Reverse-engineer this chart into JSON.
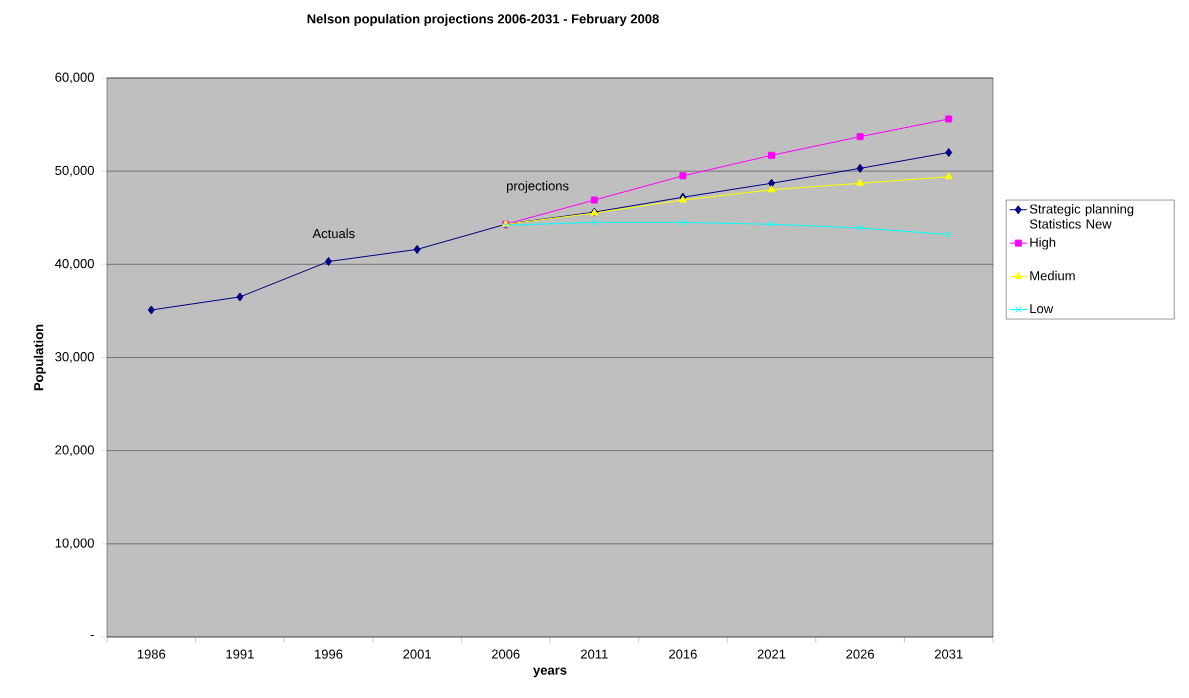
{
  "chart_data": {
    "type": "line",
    "title": "Nelson population projections 2006-2031  - February 2008",
    "xlabel": "years",
    "ylabel": "Population",
    "categories": [
      "1986",
      "1991",
      "1996",
      "2001",
      "2006",
      "2011",
      "2016",
      "2021",
      "2026",
      "2031"
    ],
    "series": [
      {
        "name": "Strategic planning Statistics New",
        "color": "#000080",
        "marker": "diamond",
        "values": [
          35100,
          36500,
          40300,
          41600,
          44300,
          45600,
          47200,
          48700,
          50300,
          52000
        ]
      },
      {
        "name": "High",
        "color": "#ff00ff",
        "marker": "square",
        "values": [
          null,
          null,
          null,
          null,
          44300,
          46900,
          49500,
          51700,
          53700,
          55600
        ]
      },
      {
        "name": "Medium",
        "color": "#ffff00",
        "marker": "triangle",
        "values": [
          null,
          null,
          null,
          null,
          44300,
          45500,
          46900,
          48000,
          48700,
          49400
        ]
      },
      {
        "name": "Low",
        "color": "#00ffff",
        "marker": "cross",
        "values": [
          null,
          null,
          null,
          null,
          44200,
          44500,
          44500,
          44300,
          43900,
          43200
        ]
      }
    ],
    "ylim": [
      0,
      60000
    ],
    "yticks": [
      {
        "value": 0,
        "label": "-"
      },
      {
        "value": 10000,
        "label": "10,000"
      },
      {
        "value": 20000,
        "label": "20,000"
      },
      {
        "value": 30000,
        "label": "30,000"
      },
      {
        "value": 40000,
        "label": "40,000"
      },
      {
        "value": 50000,
        "label": "50,000"
      },
      {
        "value": 60000,
        "label": "60,000"
      }
    ],
    "grid": "y",
    "legend": "right",
    "annotations": [
      "Actuals",
      "projections"
    ]
  }
}
